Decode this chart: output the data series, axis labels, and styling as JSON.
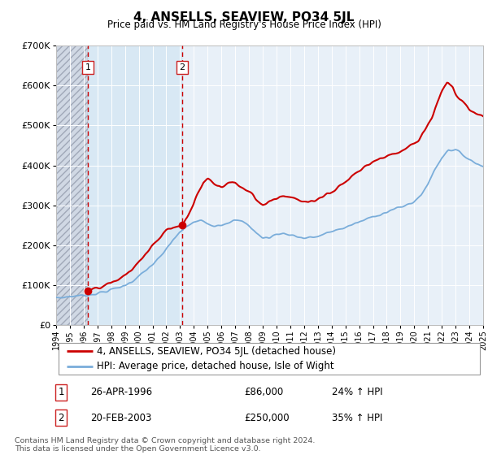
{
  "title": "4, ANSELLS, SEAVIEW, PO34 5JL",
  "subtitle": "Price paid vs. HM Land Registry's House Price Index (HPI)",
  "legend_line1": "4, ANSELLS, SEAVIEW, PO34 5JL (detached house)",
  "legend_line2": "HPI: Average price, detached house, Isle of Wight",
  "footnote": "Contains HM Land Registry data © Crown copyright and database right 2024.\nThis data is licensed under the Open Government Licence v3.0.",
  "sale1_date": "26-APR-1996",
  "sale1_price": "£86,000",
  "sale1_hpi": "24% ↑ HPI",
  "sale2_date": "20-FEB-2003",
  "sale2_price": "£250,000",
  "sale2_hpi": "35% ↑ HPI",
  "sale1_x": 1996.32,
  "sale1_y": 86000,
  "sale2_x": 2003.13,
  "sale2_y": 250000,
  "xmin": 1994,
  "xmax": 2025,
  "ymin": 0,
  "ymax": 700000,
  "yticks": [
    0,
    100000,
    200000,
    300000,
    400000,
    500000,
    600000,
    700000
  ],
  "ytick_labels": [
    "£0",
    "£100K",
    "£200K",
    "£300K",
    "£400K",
    "£500K",
    "£600K",
    "£700K"
  ],
  "red_line_color": "#cc0000",
  "blue_line_color": "#7aadda",
  "bg_color": "#e8f0f8",
  "hatch_bg_color": "#d0d8e4",
  "shade2_color": "#d8e8f4",
  "grid_color": "#ffffff",
  "vline_color": "#cc0000",
  "box_edge_color": "#cc2222"
}
